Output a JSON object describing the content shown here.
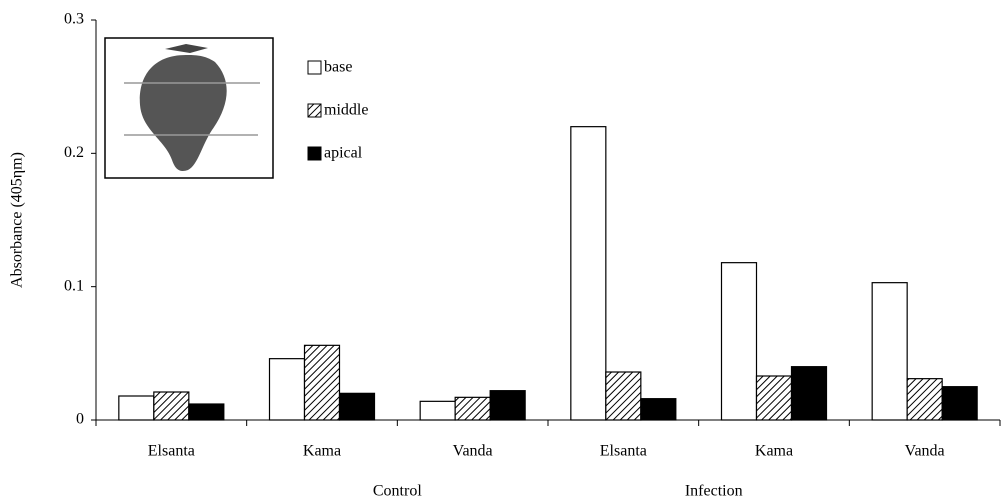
{
  "chart_data": {
    "type": "bar",
    "y_label": "Absorbance (405ηm)",
    "categories": [
      "Elsanta",
      "Kama",
      "Vanda",
      "Elsanta",
      "Kama",
      "Vanda"
    ],
    "groups": [
      "Control",
      "Infection"
    ],
    "series": [
      {
        "name": "base",
        "color": "#ffffff",
        "pattern": "none",
        "values": [
          0.018,
          0.046,
          0.014,
          0.22,
          0.118,
          0.103
        ]
      },
      {
        "name": "middle",
        "color": "#ffffff",
        "pattern": "hatch",
        "values": [
          0.021,
          0.056,
          0.017,
          0.036,
          0.033,
          0.031
        ]
      },
      {
        "name": "apical",
        "color": "#000000",
        "pattern": "none",
        "values": [
          0.012,
          0.02,
          0.022,
          0.016,
          0.04,
          0.025
        ]
      }
    ],
    "ylim": [
      0,
      0.3
    ],
    "yticks": [
      0,
      0.1,
      0.2,
      0.3
    ],
    "grid": false
  }
}
